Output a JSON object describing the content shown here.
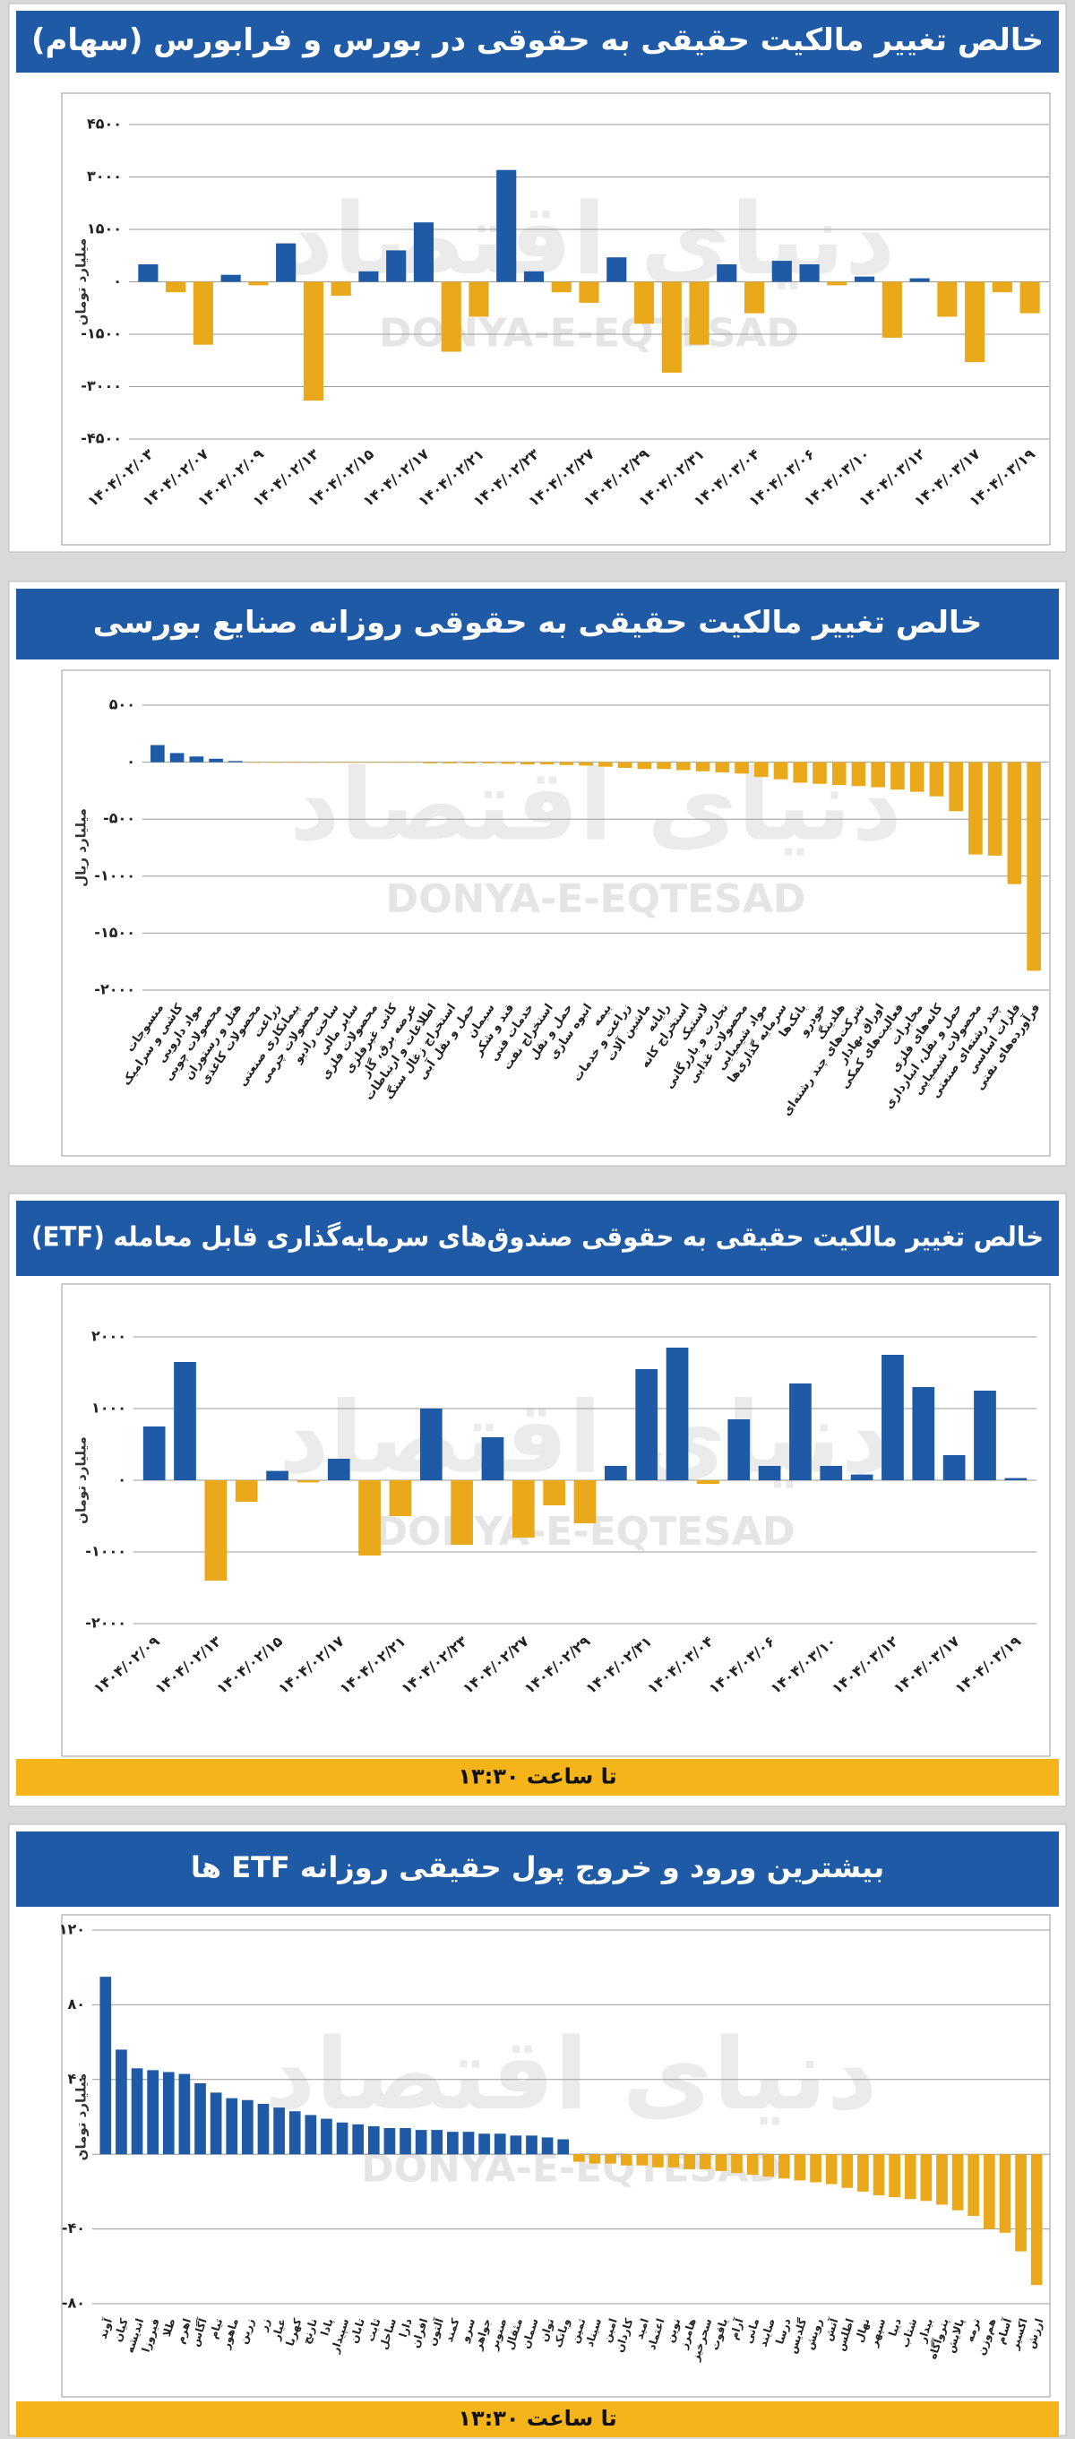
{
  "watermark": [
    "دنیای اقتصاد",
    "DONYA-E-EQTESAD"
  ],
  "bar_colors": {
    "positive": "#1f5aa6",
    "negative": "#e9a91b"
  },
  "chart_data": [
    {
      "type": "bar",
      "title": "خالص تغییر مالکیت حقیقی به حقوقی در بورس و فرابورس (سهام)",
      "y_label": "میلیارد تومان",
      "categories": [
        "۱۴۰۴/۰۲/۰۳",
        null,
        "۱۴۰۴/۰۲/۰۷",
        null,
        "۱۴۰۴/۰۲/۰۹",
        null,
        "۱۴۰۴/۰۲/۱۳",
        null,
        "۱۴۰۴/۰۲/۱۵",
        null,
        "۱۴۰۴/۰۲/۱۷",
        null,
        "۱۴۰۴/۰۲/۲۱",
        null,
        "۱۴۰۴/۰۲/۲۳",
        null,
        "۱۴۰۴/۰۲/۲۷",
        null,
        "۱۴۰۴/۰۲/۲۹",
        null,
        "۱۴۰۴/۰۲/۳۱",
        null,
        "۱۴۰۴/۰۳/۰۴",
        null,
        "۱۴۰۴/۰۳/۰۶",
        null,
        "۱۴۰۴/۰۳/۱۰",
        null,
        "۱۴۰۴/۰۳/۱۲",
        null,
        "۱۴۰۴/۰۳/۱۷",
        null,
        "۱۴۰۴/۰۳/۱۹"
      ],
      "values": [
        500,
        -300,
        -1800,
        200,
        -100,
        1100,
        -3400,
        -400,
        300,
        900,
        1700,
        -2000,
        -1000,
        3200,
        300,
        -300,
        -600,
        700,
        -1200,
        -2600,
        -1800,
        500,
        -900,
        600,
        500,
        -100,
        150,
        -1600,
        100,
        -1000,
        -2300,
        -300,
        -900
      ],
      "ylim": [
        -4500,
        4500
      ],
      "yticks": [
        {
          "value": 4500,
          "label": "۴۵۰۰"
        },
        {
          "value": 3000,
          "label": "۳۰۰۰"
        },
        {
          "value": 1500,
          "label": "۱۵۰۰"
        },
        {
          "value": 0,
          "label": "۰"
        },
        {
          "value": -1500,
          "label": "-۱۵۰۰"
        },
        {
          "value": -3000,
          "label": "-۳۰۰۰"
        },
        {
          "value": -4500,
          "label": "-۴۵۰۰"
        }
      ],
      "grid": true
    },
    {
      "type": "bar",
      "title": "خالص تغییر مالکیت حقیقی به حقوقی روزانه صنایع بورسی",
      "y_label": "میلیارد ریال",
      "categories": [
        "منسوجات",
        "کاشی و سرامیک",
        "مواد دارویی",
        "محصولات چوبی",
        "هتل و رستوران",
        "محصولات کاغذی",
        "زراعت",
        "پیمانکاری صنعتی",
        "محصولات چرمی",
        "ساخت رادیو",
        "سایر مالی",
        "محصولات فلزی",
        "کانی غیرفلزی",
        "عرضه برق، گاز",
        "اطلاعات و ارتباطات",
        "استخراج زغال سنگ",
        "حمل و نقل آبی",
        "سیمان",
        "قند و شکر",
        "خدمات فنی",
        "استخراج نفت",
        "حمل و نقل",
        "انبوه سازی",
        "بیمه",
        "زراعت و خدمات",
        "ماشین آلات",
        "رایانه",
        "استخراج کانه",
        "لاستیک",
        "تجارت و بازرگانی",
        "محصولات غذایی",
        "مواد شیمیایی",
        "سرمایه گذاری‌ها",
        "بانک‌ها",
        "خودرو",
        "هلدینگ",
        "شرکت‌های چند رشته‌ای",
        "اوراق بهادار",
        "فعالیت‌های کمکی",
        "مخابرات",
        "کانه‌های فلزی",
        "حمل و نقل، انبارداری",
        "محصولات شیمیایی",
        "چند رشته‌ای صنعتی",
        "فلزات اساسی",
        "فرآورده‌های نفتی"
      ],
      "values": [
        150,
        80,
        50,
        30,
        10,
        -5,
        -5,
        -5,
        -5,
        -5,
        -5,
        -5,
        -5,
        -5,
        -10,
        -10,
        -10,
        -10,
        -15,
        -20,
        -20,
        -25,
        -30,
        -40,
        -50,
        -60,
        -60,
        -70,
        -80,
        -90,
        -100,
        -130,
        -150,
        -180,
        -190,
        -200,
        -210,
        -220,
        -240,
        -260,
        -300,
        -430,
        -810,
        -820,
        -1070,
        -1830
      ],
      "ylim": [
        -2000,
        500
      ],
      "yticks": [
        {
          "value": 500,
          "label": "۵۰۰"
        },
        {
          "value": 0,
          "label": "۰"
        },
        {
          "value": -500,
          "label": "-۵۰۰"
        },
        {
          "value": -1000,
          "label": "-۱۰۰۰"
        },
        {
          "value": -1500,
          "label": "-۱۵۰۰"
        },
        {
          "value": -2000,
          "label": "-۲۰۰۰"
        }
      ],
      "grid": true
    },
    {
      "type": "bar",
      "title": "خالص تغییر مالکیت حقیقی به حقوقی صندوق‌های سرمایه‌گذاری قابل معامله (ETF)",
      "y_label": "میلیارد تومان",
      "footer": "تا ساعت ۱۳:۳۰",
      "categories": [
        "۱۴۰۴/۰۲/۰۹",
        null,
        "۱۴۰۴/۰۲/۱۳",
        null,
        "۱۴۰۴/۰۲/۱۵",
        null,
        "۱۴۰۴/۰۲/۱۷",
        null,
        "۱۴۰۴/۰۲/۲۱",
        null,
        "۱۴۰۴/۰۲/۲۳",
        null,
        "۱۴۰۴/۰۲/۲۷",
        null,
        "۱۴۰۴/۰۲/۲۹",
        null,
        "۱۴۰۴/۰۲/۳۱",
        null,
        "۱۴۰۴/۰۳/۰۴",
        null,
        "۱۴۰۴/۰۳/۰۶",
        null,
        "۱۴۰۴/۰۳/۱۰",
        null,
        "۱۴۰۴/۰۳/۱۲",
        null,
        "۱۴۰۴/۰۳/۱۷",
        null,
        "۱۴۰۴/۰۳/۱۹"
      ],
      "values": [
        750,
        1650,
        -1400,
        -300,
        130,
        -30,
        300,
        -1050,
        -500,
        1000,
        -900,
        600,
        -800,
        -350,
        -600,
        200,
        1550,
        1850,
        -50,
        850,
        200,
        1350,
        200,
        80,
        1750,
        1300,
        350,
        1250,
        30
      ],
      "ylim": [
        -2000,
        2000
      ],
      "yticks": [
        {
          "value": 2000,
          "label": "۲۰۰۰"
        },
        {
          "value": 1000,
          "label": "۱۰۰۰"
        },
        {
          "value": 0,
          "label": "۰"
        },
        {
          "value": -1000,
          "label": "-۱۰۰۰"
        },
        {
          "value": -2000,
          "label": "-۲۰۰۰"
        }
      ],
      "grid": true
    },
    {
      "type": "bar",
      "title": "بیشترین ورود و خروج پول حقیقی روزانه ETF ها",
      "y_label": "میلیارد تومان",
      "footer": "تا ساعت ۱۳:۳۰",
      "categories": [
        "آوند",
        "کیان",
        "اندیشه",
        "فیروزا",
        "طلا",
        "اهرم",
        "آگاس",
        "تیام",
        "ماهور",
        "زرین",
        "زر",
        "عیار",
        "کهربا",
        "نارنج",
        "پادا",
        "سپیدار",
        "تابان",
        "ثابت",
        "ساحل",
        "دارا",
        "افران",
        "آلتون",
        "کمند",
        "سرو",
        "جواهر",
        "صنوبر",
        "مثقال",
        "سمان",
        "توان",
        "وبانک",
        "ثمین",
        "سیناد",
        "امین",
        "کاردان",
        "امید",
        "اعتماد",
        "نوین",
        "هامرز",
        "سحرخیز",
        "یاقوت",
        "آرام",
        "مانی",
        "صایند",
        "درسا",
        "گلدیس",
        "رویش",
        "آتش",
        "اطلس",
        "نهال",
        "سپهر",
        "دیبا",
        "شتاب",
        "بیدار",
        "پتروآگاه",
        "پالایش",
        "ترمه",
        "هم‌وزن",
        "آسام",
        "اکسیر",
        "ارزش"
      ],
      "values": [
        95,
        56,
        46,
        45,
        44,
        43,
        38,
        33,
        30,
        29,
        27,
        25,
        23,
        21,
        19,
        17,
        16,
        15,
        14,
        14,
        13,
        13,
        12,
        12,
        11,
        11,
        10,
        10,
        9,
        8,
        -4,
        -5,
        -5,
        -6,
        -6,
        -7,
        -7,
        -8,
        -8,
        -9,
        -10,
        -11,
        -12,
        -13,
        -14,
        -15,
        -16,
        -18,
        -20,
        -22,
        -23,
        -24,
        -25,
        -27,
        -30,
        -33,
        -40,
        -42,
        -52,
        -70
      ],
      "ylim": [
        -80,
        120
      ],
      "yticks": [
        {
          "value": 120,
          "label": "۱۲۰"
        },
        {
          "value": 80,
          "label": "۸۰"
        },
        {
          "value": 40,
          "label": "۴۰"
        },
        {
          "value": 0,
          "label": "۰"
        },
        {
          "value": -40,
          "label": "-۴۰"
        },
        {
          "value": -80,
          "label": "-۸۰"
        }
      ],
      "grid": true
    }
  ]
}
